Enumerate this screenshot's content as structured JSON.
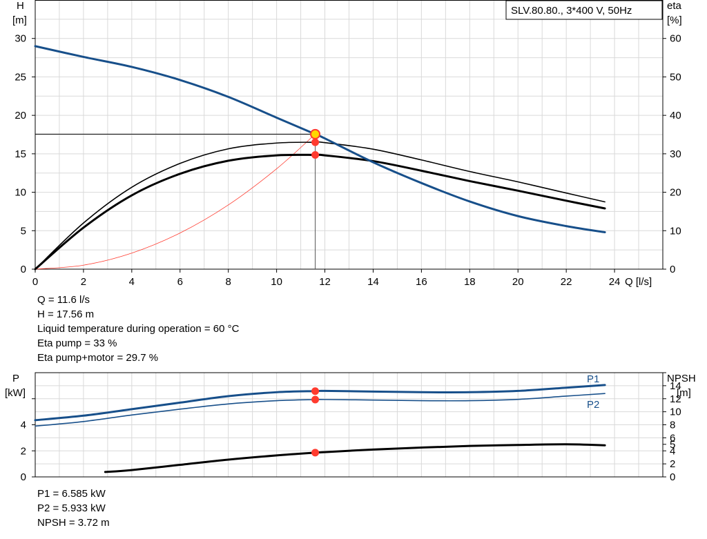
{
  "annotations": {
    "top": [
      "Q = 11.6 l/s",
      "H = 17.56 m",
      "Liquid temperature during operation = 60 °C",
      "Eta pump = 33 %",
      "Eta pump+motor = 29.7 %"
    ],
    "bottom": [
      "P1 = 6.585 kW",
      "P2 = 5.933 kW",
      "NPSH = 3.72 m"
    ]
  },
  "colors": {
    "blue": "#174f8a",
    "black": "#000000",
    "red": "#ff3b2f",
    "yellow": "#ffd800",
    "grid": "#d9d9d9"
  },
  "chart_data": [
    {
      "type": "line",
      "title": "SLV.80.80., 3*400 V, 50Hz",
      "xlabel": "Q [l/s]",
      "ylabel": [
        "H",
        "[m]"
      ],
      "y2label": [
        "eta",
        "[%]"
      ],
      "xlim": [
        0,
        26
      ],
      "ylim": [
        0,
        35
      ],
      "y2lim": [
        0,
        70
      ],
      "xticks": [
        0,
        2,
        4,
        6,
        8,
        10,
        12,
        14,
        16,
        18,
        20,
        22,
        24
      ],
      "yticks": [
        0,
        5,
        10,
        15,
        20,
        25,
        30
      ],
      "y2ticks": [
        0,
        10,
        20,
        30,
        40,
        50,
        60
      ],
      "grid": true,
      "series": [
        {
          "axis": "left",
          "color": "#174f8a",
          "width": 3,
          "x": [
            0,
            2,
            4,
            6,
            8,
            10,
            11.6,
            12,
            14,
            16,
            18,
            20,
            22,
            23.6
          ],
          "y": [
            29,
            27.6,
            26.3,
            24.6,
            22.4,
            19.7,
            17.56,
            17,
            13.9,
            11.2,
            8.8,
            6.9,
            5.6,
            4.8
          ]
        },
        {
          "axis": "right",
          "color": "#000000",
          "width": 1.6,
          "x": [
            0,
            2,
            4,
            6,
            8,
            10,
            11.6,
            12,
            14,
            16,
            18,
            20,
            22,
            23.6
          ],
          "y": [
            0,
            12,
            21.3,
            27.5,
            31.3,
            32.8,
            33,
            32.9,
            31.2,
            28.4,
            25.4,
            22.7,
            19.8,
            17.5
          ]
        },
        {
          "axis": "right",
          "color": "#000000",
          "width": 3,
          "x": [
            0,
            2,
            4,
            6,
            8,
            10,
            11.6,
            12,
            14,
            16,
            18,
            20,
            22,
            23.6
          ],
          "y": [
            0,
            10.8,
            19.2,
            24.8,
            28.2,
            29.6,
            29.7,
            29.6,
            28.1,
            25.6,
            22.9,
            20.4,
            17.8,
            15.8
          ]
        },
        {
          "axis": "left",
          "color": "#ff3b2f",
          "width": 0.8,
          "x": [
            0,
            2,
            4,
            6,
            8,
            10,
            11.6
          ],
          "y": [
            0,
            0.52,
            2.09,
            4.7,
            8.35,
            13.05,
            17.56
          ]
        }
      ],
      "operating_point": {
        "x": 11.6,
        "y": 17.56
      },
      "markers": [
        {
          "axis": "right",
          "x": 11.6,
          "y": 33
        },
        {
          "axis": "right",
          "x": 11.6,
          "y": 29.7
        }
      ]
    },
    {
      "type": "line",
      "xlim": [
        0,
        26
      ],
      "ylabel": [
        "P",
        "[kW]"
      ],
      "y2label": [
        "NPSH",
        "[m]"
      ],
      "ylim": [
        0,
        8
      ],
      "y2lim": [
        0,
        16
      ],
      "yticks": [
        0,
        2,
        4
      ],
      "y2ticks": [
        0,
        2,
        4,
        5,
        6,
        8,
        10,
        12,
        14
      ],
      "grid": true,
      "series": [
        {
          "name": "P1",
          "axis": "left",
          "color": "#174f8a",
          "width": 3,
          "x": [
            0,
            2,
            4,
            6,
            8,
            10,
            11.6,
            12,
            14,
            16,
            18,
            20,
            22,
            23.6
          ],
          "y": [
            4.35,
            4.7,
            5.2,
            5.7,
            6.2,
            6.5,
            6.585,
            6.6,
            6.55,
            6.5,
            6.5,
            6.6,
            6.85,
            7.05
          ]
        },
        {
          "name": "P2",
          "axis": "left",
          "color": "#174f8a",
          "width": 1.6,
          "x": [
            0,
            2,
            4,
            6,
            8,
            10,
            11.6,
            12,
            14,
            16,
            18,
            20,
            22,
            23.6
          ],
          "y": [
            3.9,
            4.25,
            4.75,
            5.2,
            5.6,
            5.85,
            5.933,
            5.94,
            5.9,
            5.85,
            5.85,
            5.95,
            6.2,
            6.4
          ]
        },
        {
          "name": "NPSH",
          "axis": "right",
          "color": "#000000",
          "width": 3,
          "x": [
            2.9,
            4,
            6,
            8,
            10,
            11.6,
            12,
            14,
            16,
            18,
            20,
            22,
            23.6
          ],
          "y": [
            0.75,
            1.05,
            1.85,
            2.65,
            3.3,
            3.72,
            3.8,
            4.2,
            4.5,
            4.75,
            4.9,
            5.0,
            4.85
          ]
        }
      ],
      "markers": [
        {
          "axis": "left",
          "x": 11.6,
          "y": 6.585
        },
        {
          "axis": "left",
          "x": 11.6,
          "y": 5.933
        },
        {
          "axis": "right",
          "x": 11.6,
          "y": 3.72
        }
      ]
    }
  ]
}
